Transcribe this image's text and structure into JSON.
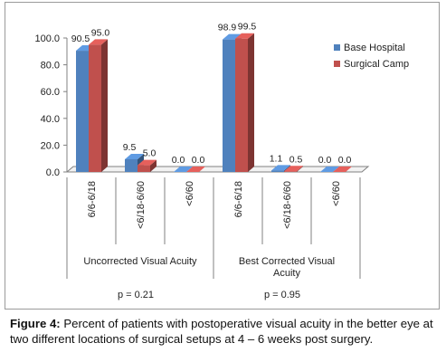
{
  "chart_data": {
    "type": "bar",
    "y_ticks": [
      "0.0",
      "20.0",
      "40.0",
      "60.0",
      "80.0",
      "100.0"
    ],
    "ylim": [
      0,
      100
    ],
    "categories": [
      "6/6-6/18",
      "<6/18-6/60",
      "<6/60",
      "6/6-6/18",
      "<6/18-6/60",
      "<6/60"
    ],
    "groups": [
      {
        "label": "Uncorrected Visual Acuity",
        "p_value": "p =  0.21"
      },
      {
        "label": "Best Corrected Visual Acuity",
        "p_value": "p = 0.95"
      }
    ],
    "series": [
      {
        "name": "Base Hospital",
        "color": "#4f81bd",
        "values": [
          90.5,
          9.5,
          0.0,
          98.9,
          1.1,
          0.0
        ],
        "value_labels": [
          "90.5",
          "9.5",
          "0.0",
          "98.9",
          "1.1",
          "0.0"
        ]
      },
      {
        "name": "Surgical Camp",
        "color": "#c0504d",
        "values": [
          95.0,
          5.0,
          0.0,
          99.5,
          0.5,
          0.0
        ],
        "value_labels": [
          "95.0",
          "5.0",
          "0.0",
          "99.5",
          "0.5",
          "0.0"
        ]
      }
    ],
    "legend_position": "right",
    "grid": false
  },
  "caption": {
    "label": "Figure 4:",
    "text": " Percent of patients with postoperative visual acuity in the better eye at two different locations of surgical setups at 4 – 6 weeks post surgery."
  }
}
